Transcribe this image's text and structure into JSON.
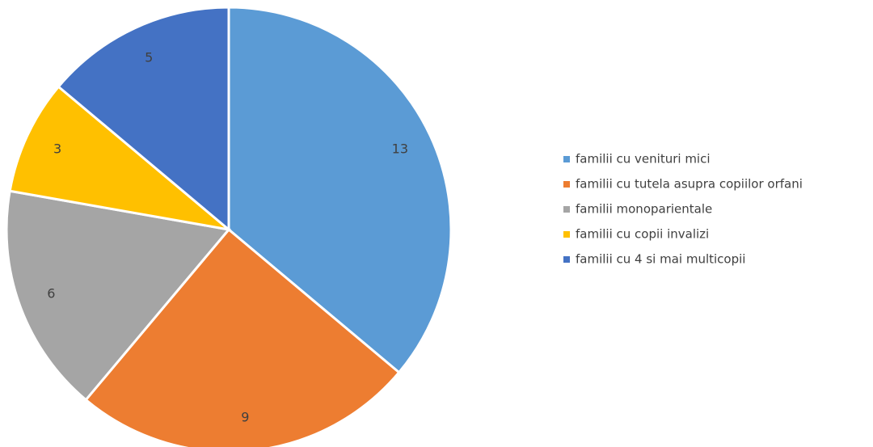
{
  "chart_data": {
    "type": "pie",
    "categories": [
      "familii cu venituri mici",
      "familii cu tutela asupra copiilor orfani",
      "familii monoparientale",
      "familii cu copii invalizi",
      "familii cu 4 si mai multicopii"
    ],
    "values": [
      13,
      9,
      6,
      3,
      5
    ],
    "colors": [
      "#5b9bd5",
      "#ed7d31",
      "#a5a5a5",
      "#ffc000",
      "#4472c4"
    ],
    "legend": "right"
  }
}
